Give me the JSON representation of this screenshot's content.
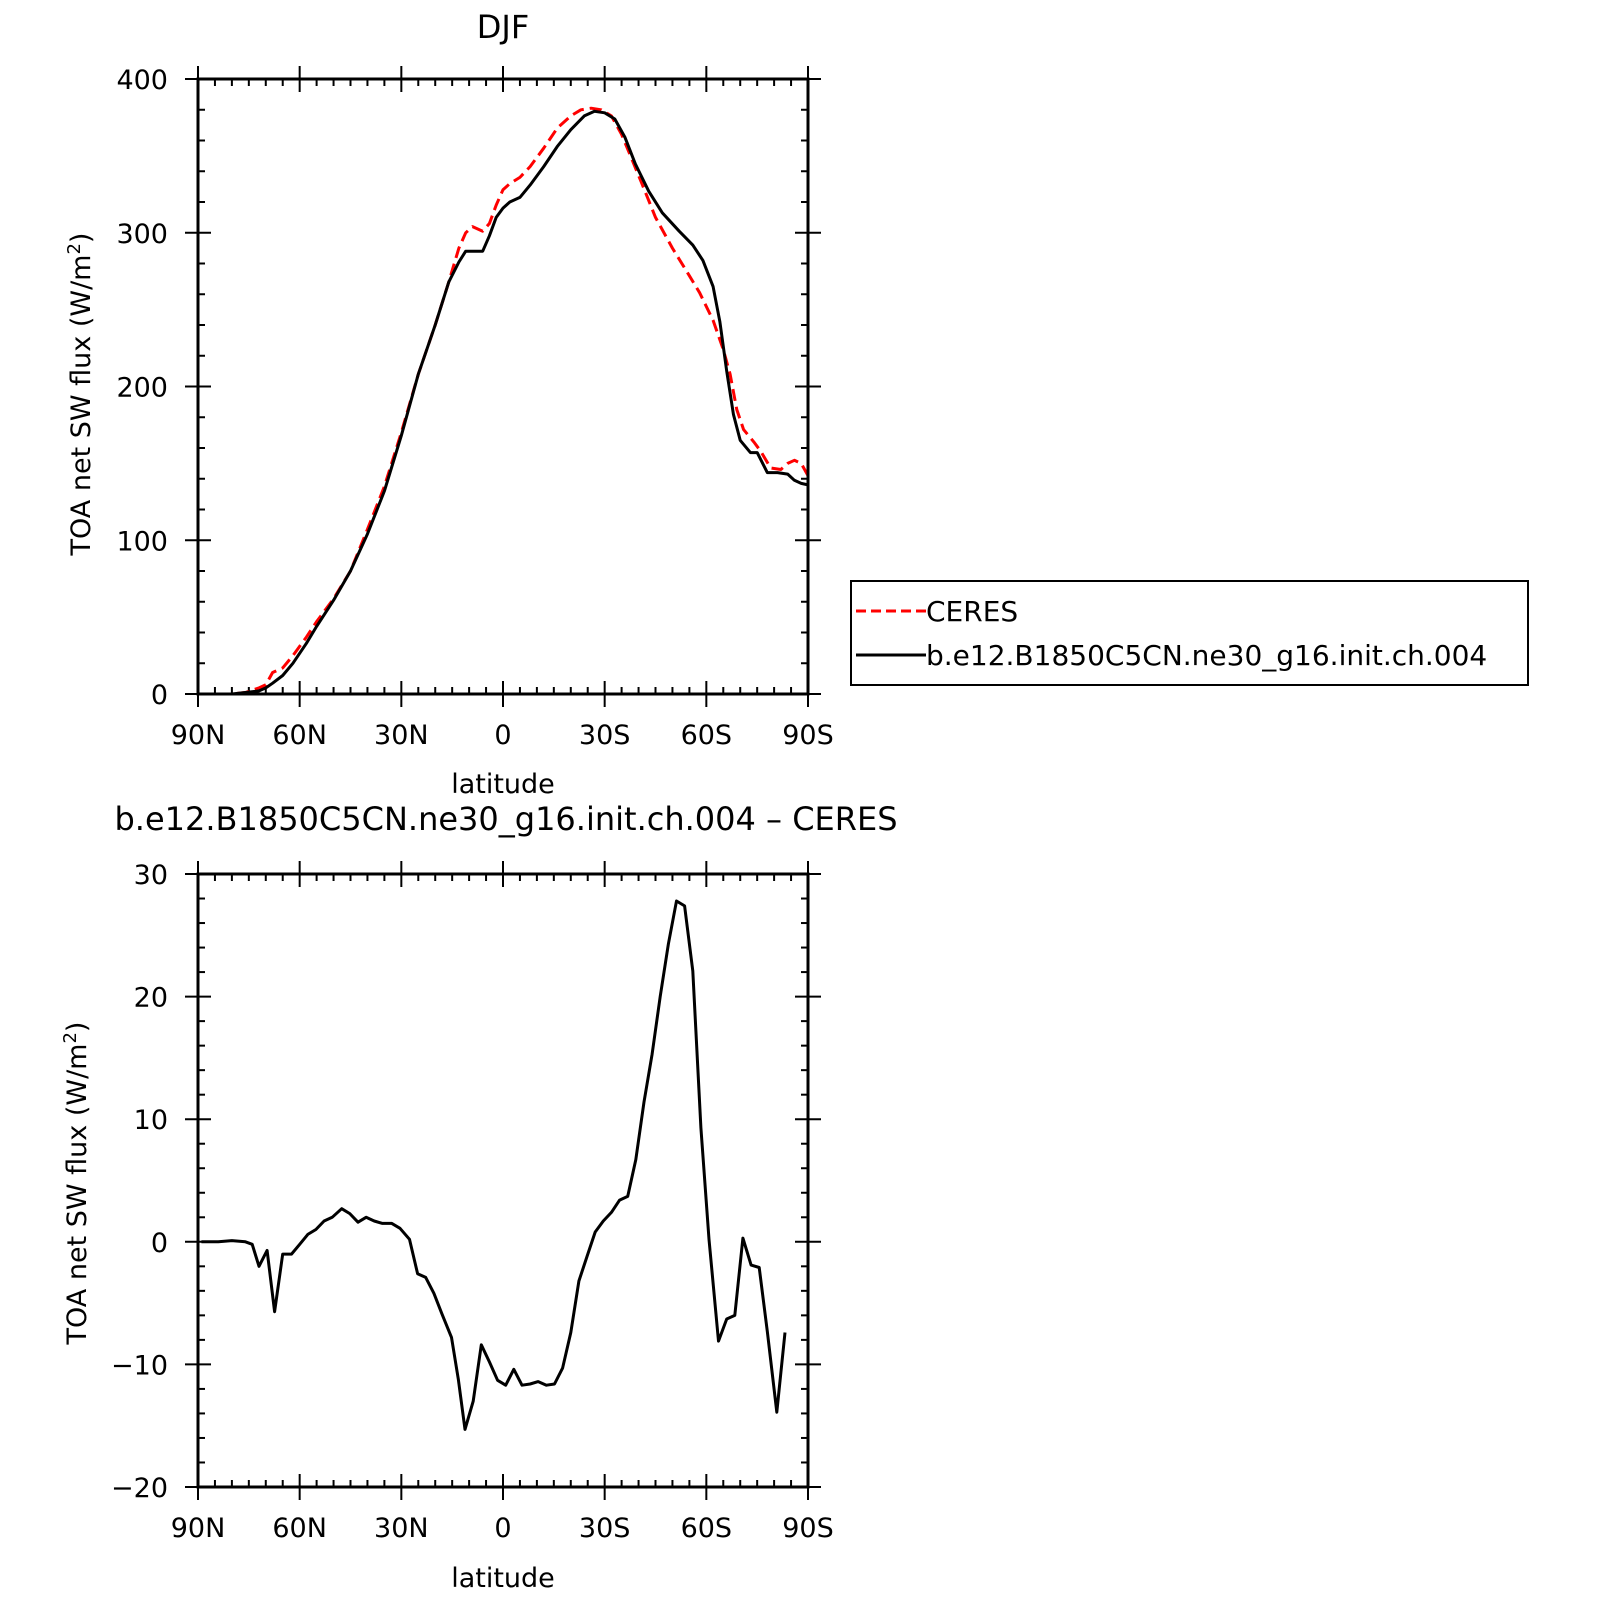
{
  "chart_data": [
    {
      "type": "line",
      "title": "DJF",
      "xlabel": "latitude",
      "ylabel": "TOA net SW flux (W/m",
      "ylabel_sup": "2",
      "ylabel_close": ")",
      "xlim": [
        90,
        -90
      ],
      "ylim": [
        0,
        400
      ],
      "x_ticks": [
        {
          "value": 90,
          "label": "90N"
        },
        {
          "value": 60,
          "label": "60N"
        },
        {
          "value": 30,
          "label": "30N"
        },
        {
          "value": 0,
          "label": "0"
        },
        {
          "value": -30,
          "label": "30S"
        },
        {
          "value": -60,
          "label": "60S"
        },
        {
          "value": -90,
          "label": "90S"
        }
      ],
      "y_ticks": [
        {
          "value": 0,
          "label": "0"
        },
        {
          "value": 100,
          "label": "100"
        },
        {
          "value": 200,
          "label": "200"
        },
        {
          "value": 300,
          "label": "300"
        },
        {
          "value": 400,
          "label": "400"
        }
      ],
      "legend": {
        "placement": "right",
        "entries": [
          {
            "label": "CERES",
            "style": "dashed",
            "color": "#ff0000"
          },
          {
            "label": "b.e12.B1850C5CN.ne30_g16.init.ch.004",
            "style": "solid",
            "color": "#000000"
          }
        ]
      },
      "series": [
        {
          "name": "CERES",
          "color": "#ff0000",
          "style": "dashed",
          "points": [
            [
              89,
              0
            ],
            [
              85,
              0
            ],
            [
              80,
              0
            ],
            [
              76,
              1
            ],
            [
              72,
              4
            ],
            [
              70,
              6
            ],
            [
              68,
              14
            ],
            [
              65,
              17
            ],
            [
              62,
              25
            ],
            [
              58,
              37
            ],
            [
              55,
              47
            ],
            [
              50,
              62
            ],
            [
              45,
              80
            ],
            [
              40,
              107
            ],
            [
              35,
              135
            ],
            [
              30,
              170
            ],
            [
              25,
              208
            ],
            [
              20,
              240
            ],
            [
              16,
              268
            ],
            [
              13,
              290
            ],
            [
              11,
              300
            ],
            [
              9,
              304
            ],
            [
              6,
              301
            ],
            [
              4,
              306
            ],
            [
              2,
              318
            ],
            [
              0,
              328
            ],
            [
              -2,
              332
            ],
            [
              -5,
              336
            ],
            [
              -8,
              343
            ],
            [
              -12,
              355
            ],
            [
              -16,
              368
            ],
            [
              -20,
              376
            ],
            [
              -23,
              380
            ],
            [
              -26,
              381
            ],
            [
              -29,
              380
            ],
            [
              -32,
              376
            ],
            [
              -35,
              364
            ],
            [
              -38,
              348
            ],
            [
              -41,
              332
            ],
            [
              -45,
              310
            ],
            [
              -50,
              290
            ],
            [
              -55,
              272
            ],
            [
              -58,
              261
            ],
            [
              -62,
              243
            ],
            [
              -65,
              224
            ],
            [
              -67,
              208
            ],
            [
              -69,
              185
            ],
            [
              -71,
              172
            ],
            [
              -74,
              164
            ],
            [
              -76,
              158
            ],
            [
              -79,
              147
            ],
            [
              -82,
              146
            ],
            [
              -84,
              150
            ],
            [
              -86,
              152
            ],
            [
              -88,
              150
            ],
            [
              -90,
              142
            ]
          ]
        },
        {
          "name": "b.e12.B1850C5CN.ne30_g16.init.ch.004",
          "color": "#000000",
          "style": "solid",
          "points": [
            [
              89,
              0
            ],
            [
              85,
              0
            ],
            [
              80,
              0
            ],
            [
              76,
              1
            ],
            [
              72,
              2
            ],
            [
              70,
              4
            ],
            [
              68,
              7
            ],
            [
              65,
              12
            ],
            [
              62,
              20
            ],
            [
              58,
              33
            ],
            [
              55,
              44
            ],
            [
              50,
              61
            ],
            [
              45,
              80
            ],
            [
              40,
              104
            ],
            [
              35,
              132
            ],
            [
              30,
              168
            ],
            [
              25,
              208
            ],
            [
              20,
              240
            ],
            [
              16,
              268
            ],
            [
              13,
              281
            ],
            [
              11,
              288
            ],
            [
              9,
              288
            ],
            [
              6,
              288
            ],
            [
              4,
              298
            ],
            [
              2,
              310
            ],
            [
              0,
              316
            ],
            [
              -2,
              320
            ],
            [
              -5,
              323
            ],
            [
              -8,
              331
            ],
            [
              -12,
              343
            ],
            [
              -16,
              356
            ],
            [
              -20,
              367
            ],
            [
              -24,
              376
            ],
            [
              -27,
              379
            ],
            [
              -30,
              378
            ],
            [
              -33,
              374
            ],
            [
              -36,
              362
            ],
            [
              -39,
              345
            ],
            [
              -43,
              327
            ],
            [
              -47,
              313
            ],
            [
              -52,
              301
            ],
            [
              -56,
              292
            ],
            [
              -59,
              282
            ],
            [
              -62,
              265
            ],
            [
              -64,
              242
            ],
            [
              -66,
              210
            ],
            [
              -68,
              182
            ],
            [
              -70,
              165
            ],
            [
              -73,
              157
            ],
            [
              -75,
              157
            ],
            [
              -78,
              144
            ],
            [
              -81,
              144
            ],
            [
              -84,
              143
            ],
            [
              -86,
              139
            ],
            [
              -88,
              137
            ],
            [
              -90,
              136
            ]
          ]
        }
      ]
    },
    {
      "type": "line",
      "title": "b.e12.B1850C5CN.ne30_g16.init.ch.004 – CERES",
      "xlabel": "latitude",
      "ylabel": "TOA net SW flux (W/m",
      "ylabel_sup": "2",
      "ylabel_close": ")",
      "xlim": [
        90,
        -90
      ],
      "ylim": [
        -20,
        30
      ],
      "x_ticks": [
        {
          "value": 90,
          "label": "90N"
        },
        {
          "value": 60,
          "label": "60N"
        },
        {
          "value": 30,
          "label": "30N"
        },
        {
          "value": 0,
          "label": "0"
        },
        {
          "value": -30,
          "label": "30S"
        },
        {
          "value": -60,
          "label": "60S"
        },
        {
          "value": -90,
          "label": "90S"
        }
      ],
      "y_ticks": [
        {
          "value": -20,
          "label": "−20"
        },
        {
          "value": -10,
          "label": "−10"
        },
        {
          "value": 0,
          "label": "0"
        },
        {
          "value": 10,
          "label": "10"
        },
        {
          "value": 20,
          "label": "20"
        },
        {
          "value": 30,
          "label": "30"
        }
      ],
      "series": [
        {
          "color": "#000000",
          "style": "solid",
          "points": [
            [
              89,
              0
            ],
            [
              84,
              0
            ],
            [
              80,
              0.1
            ],
            [
              76,
              0
            ],
            [
              74,
              -0.2
            ],
            [
              72,
              -2
            ],
            [
              69.6,
              -0.7
            ],
            [
              67.4,
              -5.7
            ],
            [
              65,
              -1
            ],
            [
              62.4,
              -1
            ],
            [
              60,
              -0.2
            ],
            [
              57.6,
              0.6
            ],
            [
              55.2,
              1
            ],
            [
              52.8,
              1.7
            ],
            [
              50.4,
              2
            ],
            [
              47.6,
              2.7
            ],
            [
              45.2,
              2.3
            ],
            [
              42.8,
              1.6
            ],
            [
              40.4,
              2
            ],
            [
              38,
              1.7
            ],
            [
              35.6,
              1.5
            ],
            [
              32.8,
              1.5
            ],
            [
              30.4,
              1.1
            ],
            [
              27.6,
              0.2
            ],
            [
              25.2,
              -2.6
            ],
            [
              22.8,
              -2.9
            ],
            [
              20.4,
              -4.2
            ],
            [
              18,
              -5.9
            ],
            [
              15.2,
              -7.8
            ],
            [
              13.2,
              -11.2
            ],
            [
              11.2,
              -15.3
            ],
            [
              8.8,
              -13
            ],
            [
              6.4,
              -8.4
            ],
            [
              4,
              -9.8
            ],
            [
              1.6,
              -11.3
            ],
            [
              -0.8,
              -11.7
            ],
            [
              -3.2,
              -10.4
            ],
            [
              -5.6,
              -11.7
            ],
            [
              -8,
              -11.6
            ],
            [
              -10.4,
              -11.4
            ],
            [
              -12.8,
              -11.7
            ],
            [
              -15.2,
              -11.6
            ],
            [
              -17.6,
              -10.3
            ],
            [
              -20,
              -7.4
            ],
            [
              -22.4,
              -3.2
            ],
            [
              -24.8,
              -1.2
            ],
            [
              -27.2,
              0.8
            ],
            [
              -29.6,
              1.7
            ],
            [
              -32,
              2.4
            ],
            [
              -34.4,
              3.4
            ],
            [
              -36.8,
              3.7
            ],
            [
              -39.2,
              6.7
            ],
            [
              -41.6,
              11.4
            ],
            [
              -44,
              15.3
            ],
            [
              -46.4,
              20
            ],
            [
              -48.8,
              24.3
            ],
            [
              -51.2,
              27.8
            ],
            [
              -53.6,
              27.4
            ],
            [
              -56,
              22.1
            ],
            [
              -58.4,
              9.3
            ],
            [
              -60.8,
              0.2
            ],
            [
              -63.6,
              -8.1
            ],
            [
              -66,
              -6.3
            ],
            [
              -68.4,
              -6
            ],
            [
              -70.8,
              0.3
            ],
            [
              -73.2,
              -1.9
            ],
            [
              -75.6,
              -2.1
            ],
            [
              -78,
              -7.3
            ],
            [
              -80.8,
              -13.9
            ],
            [
              -83.2,
              -7.4
            ]
          ]
        }
      ]
    }
  ]
}
